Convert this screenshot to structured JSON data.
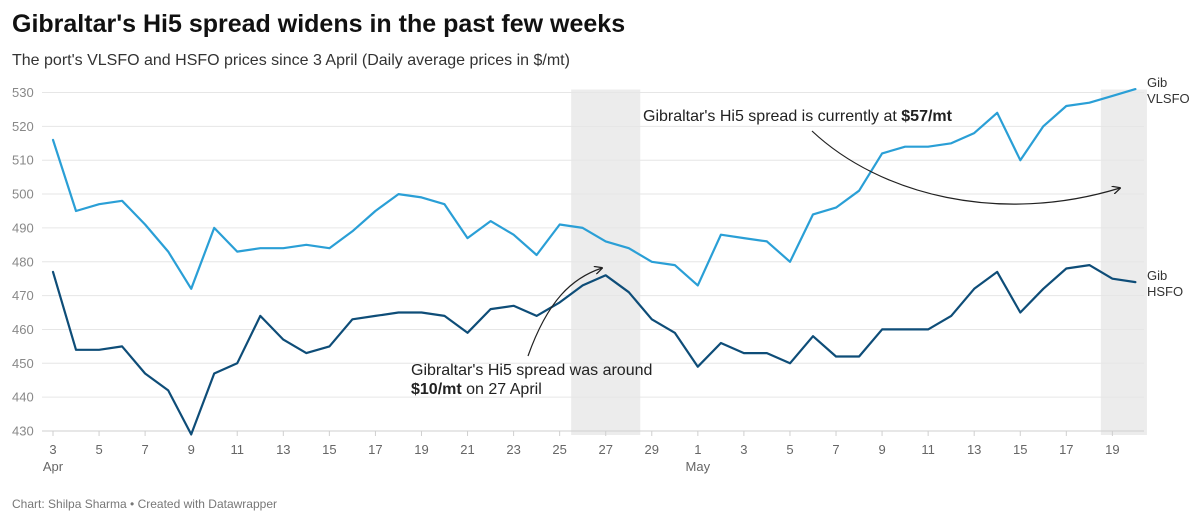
{
  "title": "Gibraltar's Hi5 spread widens in the past few weeks",
  "subtitle": "The port's VLSFO and HSFO prices since 3 April (Daily average prices in $/mt)",
  "footer": "Chart: Shilpa Sharma • Created with Datawrapper",
  "colors": {
    "vlsfo": "#2a9fd6",
    "hsfo": "#0e4d78",
    "highlight": "#ececec",
    "grid": "#e6e6e6"
  },
  "chart_data": {
    "type": "line",
    "grid": true,
    "ylim": [
      430,
      530
    ],
    "yticks": [
      430,
      440,
      450,
      460,
      470,
      480,
      490,
      500,
      510,
      520,
      530
    ],
    "x": [
      "2024-04-03",
      "2024-04-04",
      "2024-04-05",
      "2024-04-06",
      "2024-04-07",
      "2024-04-08",
      "2024-04-09",
      "2024-04-10",
      "2024-04-11",
      "2024-04-12",
      "2024-04-13",
      "2024-04-14",
      "2024-04-15",
      "2024-04-16",
      "2024-04-17",
      "2024-04-18",
      "2024-04-19",
      "2024-04-20",
      "2024-04-21",
      "2024-04-22",
      "2024-04-23",
      "2024-04-24",
      "2024-04-25",
      "2024-04-26",
      "2024-04-27",
      "2024-04-28",
      "2024-04-29",
      "2024-04-30",
      "2024-05-01",
      "2024-05-02",
      "2024-05-03",
      "2024-05-04",
      "2024-05-05",
      "2024-05-06",
      "2024-05-07",
      "2024-05-08",
      "2024-05-09",
      "2024-05-10",
      "2024-05-11",
      "2024-05-12",
      "2024-05-13",
      "2024-05-14",
      "2024-05-15",
      "2024-05-16",
      "2024-05-17",
      "2024-05-18",
      "2024-05-19",
      "2024-05-20"
    ],
    "xticks": [
      {
        "label": "3",
        "month": "Apr",
        "i": 0
      },
      {
        "label": "5",
        "i": 2
      },
      {
        "label": "7",
        "i": 4
      },
      {
        "label": "9",
        "i": 6
      },
      {
        "label": "11",
        "i": 8
      },
      {
        "label": "13",
        "i": 10
      },
      {
        "label": "15",
        "i": 12
      },
      {
        "label": "17",
        "i": 14
      },
      {
        "label": "19",
        "i": 16
      },
      {
        "label": "21",
        "i": 18
      },
      {
        "label": "23",
        "i": 20
      },
      {
        "label": "25",
        "i": 22
      },
      {
        "label": "27",
        "i": 24
      },
      {
        "label": "29",
        "i": 26
      },
      {
        "label": "1",
        "month": "May",
        "i": 28
      },
      {
        "label": "3",
        "i": 30
      },
      {
        "label": "5",
        "i": 32
      },
      {
        "label": "7",
        "i": 34
      },
      {
        "label": "9",
        "i": 36
      },
      {
        "label": "11",
        "i": 38
      },
      {
        "label": "13",
        "i": 40
      },
      {
        "label": "15",
        "i": 42
      },
      {
        "label": "17",
        "i": 44
      },
      {
        "label": "19",
        "i": 46
      }
    ],
    "series": [
      {
        "name": "Gib VLSFO",
        "label_lines": [
          "Gib",
          "VLSFO"
        ],
        "color_key": "vlsfo",
        "values": [
          516,
          495,
          497,
          498,
          491,
          483,
          472,
          490,
          483,
          484,
          484,
          485,
          484,
          489,
          495,
          500,
          499,
          497,
          487,
          492,
          488,
          482,
          491,
          490,
          486,
          484,
          480,
          479,
          473,
          488,
          487,
          486,
          480,
          494,
          496,
          501,
          512,
          514,
          514,
          515,
          518,
          524,
          510,
          520,
          526,
          527,
          529,
          531
        ]
      },
      {
        "name": "Gib HSFO",
        "label_lines": [
          "Gib",
          "HSFO"
        ],
        "color_key": "hsfo",
        "values": [
          477,
          454,
          454,
          455,
          447,
          442,
          429,
          447,
          450,
          464,
          457,
          453,
          455,
          463,
          464,
          465,
          465,
          464,
          459,
          466,
          467,
          464,
          468,
          473,
          476,
          471,
          463,
          459,
          449,
          456,
          453,
          453,
          450,
          458,
          452,
          452,
          460,
          460,
          460,
          464,
          472,
          477,
          465,
          472,
          478,
          479,
          475,
          474
        ]
      }
    ],
    "highlights": [
      {
        "from": 23,
        "to": 25
      },
      {
        "from": 46,
        "to": 47
      }
    ],
    "annotations": [
      {
        "lines": [
          [
            {
              "t": "Gibraltar's Hi5 spread is currently at ",
              "b": false
            },
            {
              "t": "$57/mt",
              "b": true
            }
          ]
        ]
      },
      {
        "lines": [
          [
            {
              "t": "Gibraltar's Hi5 spread was around",
              "b": false
            }
          ],
          [
            {
              "t": "$10/mt",
              "b": true
            },
            {
              "t": " on 27 April",
              "b": false
            }
          ]
        ]
      }
    ]
  }
}
